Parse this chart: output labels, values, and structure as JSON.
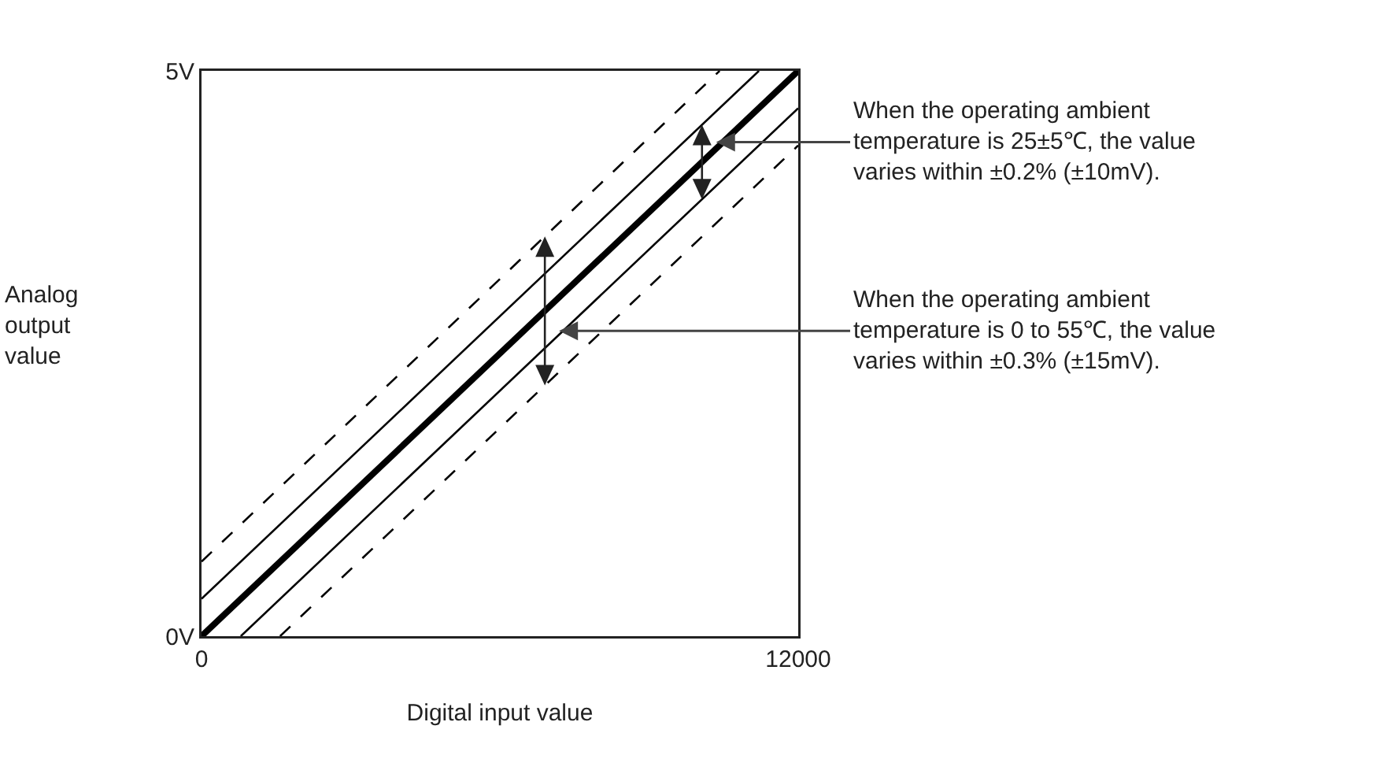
{
  "chart_data": {
    "type": "line",
    "xlabel": "Digital input value",
    "ylabel": "Analog\noutput\nvalue",
    "xlim": [
      0,
      12000
    ],
    "ylim": [
      0,
      5
    ],
    "xticks": [
      0,
      12000
    ],
    "yticks": [
      {
        "value": 0,
        "label": "0V"
      },
      {
        "value": 5,
        "label": "5V"
      }
    ],
    "marker": "none",
    "series": [
      {
        "color": "#000000",
        "line_style": "solid",
        "x": [
          0,
          12000
        ],
        "values": [
          0,
          5
        ]
      },
      {
        "color": "#000000",
        "line_style": "solid",
        "x": [
          0,
          11210
        ],
        "values": [
          0.33,
          5
        ]
      },
      {
        "color": "#000000",
        "line_style": "solid",
        "x": [
          790,
          12000
        ],
        "values": [
          0,
          4.67
        ]
      },
      {
        "color": "#000000",
        "line_style": "dashed",
        "x": [
          0,
          10420
        ],
        "values": [
          0.66,
          5
        ]
      },
      {
        "color": "#000000",
        "line_style": "dashed",
        "x": [
          1580,
          12000
        ],
        "values": [
          0,
          4.34
        ]
      }
    ],
    "annotations": [
      {
        "text": "When the operating ambient\ntemperature is 25±5℃, the value\nvaries within ±0.2% (±10mV).",
        "x": 10350,
        "y": 4.37
      },
      {
        "text": "When the operating ambient\ntemperature is 0 to 55℃, the value\nvaries within ±0.3% (±15mV).",
        "x": 7190,
        "y": 2.7
      }
    ]
  }
}
